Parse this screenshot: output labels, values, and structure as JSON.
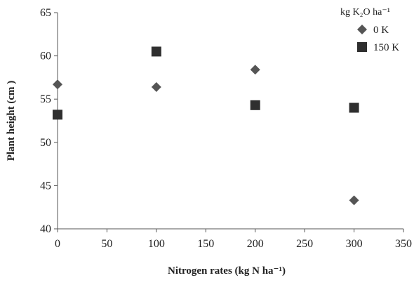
{
  "chart_data": {
    "type": "scatter",
    "title": "",
    "xlabel": "Nitrogen rates (kg N ha⁻¹)",
    "ylabel": "Plant height (cm )",
    "xlim": [
      0,
      350
    ],
    "ylim": [
      40,
      65
    ],
    "xticks": [
      "0",
      "50",
      "100",
      "150",
      "200",
      "250",
      "300",
      "350"
    ],
    "yticks": [
      "40",
      "45",
      "50",
      "55",
      "60",
      "65"
    ],
    "grid": false,
    "legend": {
      "title": "kg K₂O ha⁻¹",
      "placement": "top-right"
    },
    "series": [
      {
        "name": "0 K",
        "marker": "diamond",
        "color": "#555555",
        "x": [
          0,
          100,
          200,
          300
        ],
        "y": [
          56.7,
          56.4,
          58.4,
          43.3
        ]
      },
      {
        "name": "150 K",
        "marker": "square",
        "color": "#2f2f2f",
        "x": [
          0,
          100,
          200,
          300
        ],
        "y": [
          53.2,
          60.5,
          54.3,
          54.0
        ]
      }
    ]
  }
}
